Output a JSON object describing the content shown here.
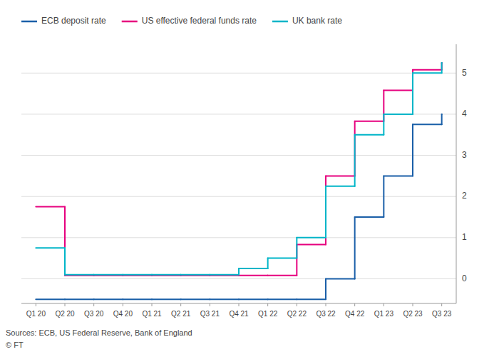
{
  "chart_data": {
    "type": "step",
    "categories": [
      "Q1 20",
      "Q2 20",
      "Q3 20",
      "Q4 20",
      "Q1 21",
      "Q2 21",
      "Q3 21",
      "Q4 21",
      "Q1 22",
      "Q2 22",
      "Q3 22",
      "Q4 22",
      "Q1 23",
      "Q2 23",
      "Q3 23"
    ],
    "series": [
      {
        "name": "ECB deposit rate",
        "color": "#1a5fa8",
        "values": [
          -0.5,
          -0.5,
          -0.5,
          -0.5,
          -0.5,
          -0.5,
          -0.5,
          -0.5,
          -0.5,
          -0.5,
          0.0,
          1.5,
          2.5,
          3.75,
          4.0
        ]
      },
      {
        "name": "US effective federal funds rate",
        "color": "#e6007e",
        "values": [
          1.75,
          0.08,
          0.08,
          0.08,
          0.08,
          0.08,
          0.08,
          0.08,
          0.08,
          0.83,
          2.5,
          3.83,
          4.58,
          5.08,
          5.25
        ]
      },
      {
        "name": "UK bank rate",
        "color": "#00b5c8",
        "values": [
          0.75,
          0.1,
          0.1,
          0.1,
          0.1,
          0.1,
          0.1,
          0.25,
          0.5,
          1.0,
          2.25,
          3.5,
          4.0,
          5.0,
          5.25
        ]
      }
    ],
    "ylim": [
      -0.6,
      5.7
    ],
    "yticks": [
      0,
      1,
      2,
      3,
      4,
      5
    ],
    "grid": true,
    "legend": "top",
    "annotations": [
      "Sources: ECB, US Federal Reserve, Bank of England",
      "© FT"
    ]
  }
}
